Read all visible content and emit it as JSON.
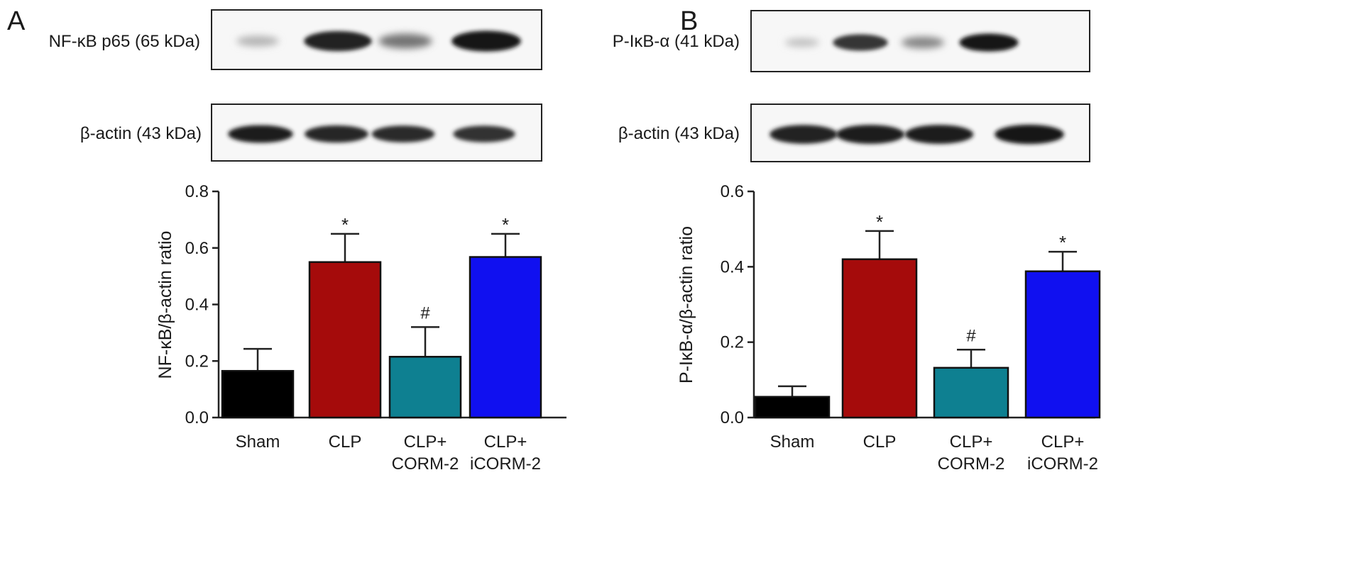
{
  "panels": [
    {
      "letter": "A",
      "blots": [
        {
          "label": "NF-κB p65 (65 kDa)",
          "band_intensity": [
            0.1,
            0.9,
            0.45,
            0.95
          ]
        },
        {
          "label": "β-actin (43 kDa)",
          "band_intensity": [
            0.92,
            0.88,
            0.85,
            0.82
          ]
        }
      ]
    },
    {
      "letter": "B",
      "blots": [
        {
          "label": "P-IκB-α (41 kDa)",
          "band_intensity": [
            0.04,
            0.8,
            0.35,
            0.95
          ]
        },
        {
          "label": "β-actin (43 kDa)",
          "band_intensity": [
            0.9,
            0.92,
            0.92,
            0.95
          ]
        }
      ]
    }
  ],
  "chart_data": [
    {
      "type": "bar",
      "panel": "A",
      "categories": [
        [
          "Sham"
        ],
        [
          "CLP"
        ],
        [
          "CLP+",
          "CORM-2"
        ],
        [
          "CLP+",
          "iCORM-2"
        ]
      ],
      "values": [
        0.165,
        0.55,
        0.215,
        0.568
      ],
      "errors": [
        0.078,
        0.1,
        0.105,
        0.082
      ],
      "annotations": [
        "",
        "*",
        "#",
        "*"
      ],
      "colors": [
        "#000000",
        "#a50b0b",
        "#0e8091",
        "#1010f0"
      ],
      "ylabel": "NF-κB/β-actin ratio",
      "ylim": [
        0,
        0.8
      ],
      "yticks": [
        "0.0",
        "0.2",
        "0.4",
        "0.6",
        "0.8"
      ],
      "grid": false
    },
    {
      "type": "bar",
      "panel": "B",
      "categories": [
        [
          "Sham"
        ],
        [
          "CLP"
        ],
        [
          "CLP+",
          "CORM-2"
        ],
        [
          "CLP+",
          "iCORM-2"
        ]
      ],
      "values": [
        0.055,
        0.42,
        0.132,
        0.388
      ],
      "errors": [
        0.028,
        0.075,
        0.048,
        0.052
      ],
      "annotations": [
        "",
        "*",
        "#",
        "*"
      ],
      "colors": [
        "#000000",
        "#a50b0b",
        "#0e8091",
        "#1010f0"
      ],
      "ylabel": "P-IκB-α/β-actin ratio",
      "ylim": [
        0,
        0.6
      ],
      "yticks": [
        "0.0",
        "0.2",
        "0.4",
        "0.6"
      ],
      "grid": false
    }
  ]
}
